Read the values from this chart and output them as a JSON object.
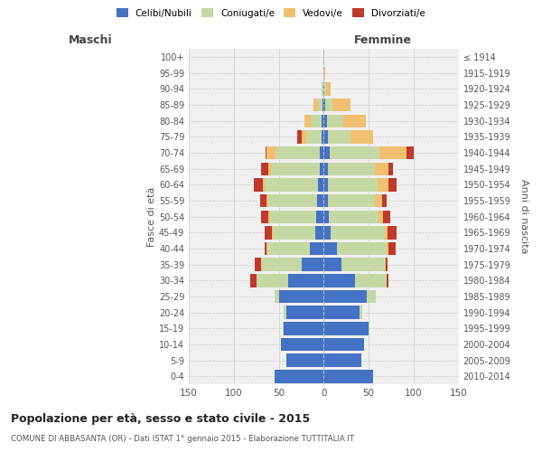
{
  "age_groups": [
    "0-4",
    "5-9",
    "10-14",
    "15-19",
    "20-24",
    "25-29",
    "30-34",
    "35-39",
    "40-44",
    "45-49",
    "50-54",
    "55-59",
    "60-64",
    "65-69",
    "70-74",
    "75-79",
    "80-84",
    "85-89",
    "90-94",
    "95-99",
    "100+"
  ],
  "birth_years": [
    "2010-2014",
    "2005-2009",
    "2000-2004",
    "1995-1999",
    "1990-1994",
    "1985-1989",
    "1980-1984",
    "1975-1979",
    "1970-1974",
    "1965-1969",
    "1960-1964",
    "1955-1959",
    "1950-1954",
    "1945-1949",
    "1940-1944",
    "1935-1939",
    "1930-1934",
    "1925-1929",
    "1920-1924",
    "1915-1919",
    "≤ 1914"
  ],
  "male_celibi": [
    55,
    42,
    48,
    45,
    42,
    50,
    40,
    25,
    15,
    9,
    8,
    7,
    6,
    4,
    4,
    2,
    2,
    1,
    0,
    0,
    0
  ],
  "male_coniugati": [
    0,
    0,
    0,
    1,
    3,
    5,
    35,
    45,
    48,
    48,
    52,
    55,
    60,
    55,
    50,
    18,
    12,
    5,
    2,
    0,
    0
  ],
  "male_vedovi": [
    0,
    0,
    0,
    0,
    0,
    0,
    0,
    0,
    1,
    1,
    2,
    2,
    2,
    3,
    10,
    5,
    8,
    5,
    0,
    0,
    0
  ],
  "male_divorziati": [
    0,
    0,
    0,
    0,
    0,
    0,
    7,
    7,
    2,
    8,
    8,
    7,
    10,
    8,
    1,
    5,
    0,
    0,
    0,
    0,
    0
  ],
  "female_celibi": [
    55,
    42,
    45,
    50,
    40,
    48,
    35,
    20,
    15,
    8,
    6,
    5,
    5,
    5,
    7,
    5,
    4,
    2,
    1,
    0,
    0
  ],
  "female_coniugati": [
    0,
    0,
    0,
    1,
    3,
    10,
    35,
    48,
    55,
    60,
    55,
    52,
    55,
    52,
    55,
    25,
    18,
    8,
    2,
    0,
    0
  ],
  "female_vedovi": [
    0,
    0,
    0,
    0,
    0,
    0,
    0,
    1,
    2,
    3,
    5,
    8,
    12,
    15,
    30,
    25,
    25,
    20,
    5,
    2,
    1
  ],
  "female_divorziati": [
    0,
    0,
    0,
    0,
    0,
    0,
    2,
    2,
    8,
    10,
    8,
    5,
    9,
    5,
    8,
    0,
    0,
    0,
    0,
    0,
    0
  ],
  "color_celibi": "#4472C4",
  "color_coniugati": "#C5D8A4",
  "color_vedovi": "#F0C070",
  "color_divorziati": "#C0392B",
  "xlim": 150,
  "title1": "Popolazione per età, sesso e stato civile - 2015",
  "title2": "COMUNE DI ABBASANTA (OR) - Dati ISTAT 1° gennaio 2015 - Elaborazione TUTTITALIA.IT",
  "ylabel_left": "Fasce di età",
  "ylabel_right": "Anni di nascita",
  "xlabel_left": "Maschi",
  "xlabel_right": "Femmine",
  "bg_color": "#f0f0f0",
  "grid_color": "#cccccc"
}
